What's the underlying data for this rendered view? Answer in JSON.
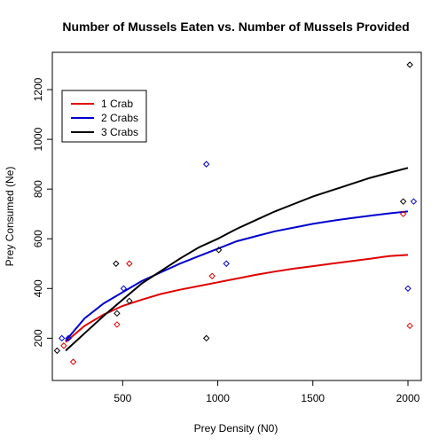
{
  "chart_data": {
    "type": "scatter",
    "title": "Number of Mussels Eaten vs. Number of Mussels Provided",
    "xlabel": "Prey Density (N0)",
    "ylabel": "Prey Consumed (Ne)",
    "xlim": [
      130,
      2070
    ],
    "ylim": [
      30,
      1350
    ],
    "x_ticks": [
      500,
      1000,
      1500,
      2000
    ],
    "y_ticks": [
      200,
      400,
      600,
      800,
      1000,
      1200
    ],
    "grid": false,
    "legend": "top-left",
    "series": [
      {
        "name": "1 Crab",
        "color": "#DF0000",
        "points": [
          [
            190,
            170
          ],
          [
            240,
            105
          ],
          [
            470,
            255
          ],
          [
            535,
            500
          ],
          [
            970,
            450
          ],
          [
            1975,
            700
          ],
          [
            2010,
            250
          ]
        ],
        "curve": [
          [
            200,
            185
          ],
          [
            300,
            250
          ],
          [
            400,
            295
          ],
          [
            500,
            330
          ],
          [
            600,
            355
          ],
          [
            700,
            378
          ],
          [
            800,
            395
          ],
          [
            900,
            410
          ],
          [
            1000,
            425
          ],
          [
            1100,
            440
          ],
          [
            1200,
            455
          ],
          [
            1300,
            468
          ],
          [
            1400,
            480
          ],
          [
            1500,
            490
          ],
          [
            1600,
            500
          ],
          [
            1700,
            510
          ],
          [
            1800,
            520
          ],
          [
            1900,
            530
          ],
          [
            2000,
            535
          ]
        ]
      },
      {
        "name": "2 Crabs",
        "color": "#0000CC",
        "points": [
          [
            180,
            200
          ],
          [
            215,
            200
          ],
          [
            505,
            400
          ],
          [
            940,
            900
          ],
          [
            1045,
            500
          ],
          [
            2000,
            400
          ],
          [
            2030,
            750
          ]
        ],
        "curve": [
          [
            200,
            190
          ],
          [
            300,
            280
          ],
          [
            400,
            340
          ],
          [
            500,
            385
          ],
          [
            600,
            430
          ],
          [
            700,
            465
          ],
          [
            800,
            500
          ],
          [
            900,
            530
          ],
          [
            1000,
            560
          ],
          [
            1100,
            590
          ],
          [
            1200,
            610
          ],
          [
            1300,
            630
          ],
          [
            1400,
            645
          ],
          [
            1500,
            660
          ],
          [
            1600,
            672
          ],
          [
            1700,
            683
          ],
          [
            1800,
            693
          ],
          [
            1900,
            702
          ],
          [
            2000,
            710
          ]
        ]
      },
      {
        "name": "3 Crabs",
        "color": "#000000",
        "points": [
          [
            155,
            150
          ],
          [
            465,
            500
          ],
          [
            470,
            300
          ],
          [
            535,
            350
          ],
          [
            940,
            200
          ],
          [
            1005,
            555
          ],
          [
            1975,
            750
          ],
          [
            2010,
            1300
          ]
        ],
        "curve": [
          [
            200,
            150
          ],
          [
            300,
            220
          ],
          [
            400,
            290
          ],
          [
            500,
            355
          ],
          [
            600,
            420
          ],
          [
            700,
            470
          ],
          [
            800,
            520
          ],
          [
            900,
            565
          ],
          [
            1000,
            600
          ],
          [
            1100,
            640
          ],
          [
            1200,
            675
          ],
          [
            1300,
            710
          ],
          [
            1400,
            740
          ],
          [
            1500,
            770
          ],
          [
            1600,
            795
          ],
          [
            1700,
            820
          ],
          [
            1800,
            845
          ],
          [
            1900,
            865
          ],
          [
            2000,
            885
          ]
        ]
      }
    ]
  }
}
